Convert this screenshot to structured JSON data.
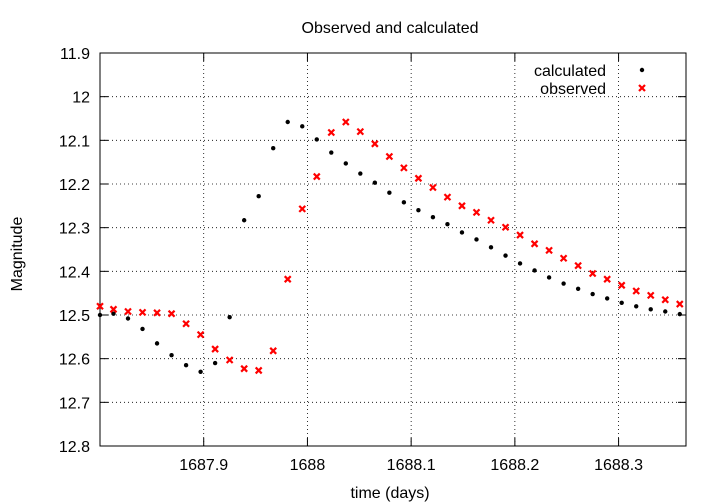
{
  "chart_data": {
    "type": "scatter",
    "title": "Observed and calculated",
    "xlabel": "time (days)",
    "ylabel": "Magnitude",
    "xlim": [
      1687.8,
      1688.365
    ],
    "ylim": [
      12.8,
      11.9
    ],
    "y_inverted": true,
    "grid": true,
    "legend_position": "top-right",
    "x_ticks": [
      {
        "value": 1687.9,
        "label": "1687.9"
      },
      {
        "value": 1688.0,
        "label": "1688"
      },
      {
        "value": 1688.1,
        "label": "1688.1"
      },
      {
        "value": 1688.2,
        "label": "1688.2"
      },
      {
        "value": 1688.3,
        "label": "1688.3"
      }
    ],
    "y_ticks": [
      {
        "value": 11.9,
        "label": "11.9"
      },
      {
        "value": 12.0,
        "label": "12"
      },
      {
        "value": 12.1,
        "label": "12.1"
      },
      {
        "value": 12.2,
        "label": "12.2"
      },
      {
        "value": 12.3,
        "label": "12.3"
      },
      {
        "value": 12.4,
        "label": "12.4"
      },
      {
        "value": 12.5,
        "label": "12.5"
      },
      {
        "value": 12.6,
        "label": "12.6"
      },
      {
        "value": 12.7,
        "label": "12.7"
      },
      {
        "value": 12.8,
        "label": "12.8"
      }
    ],
    "series": [
      {
        "name": "calculated",
        "marker": "dot",
        "color": "#000000",
        "points": [
          [
            1687.8,
            12.5
          ],
          [
            1687.813,
            12.497
          ],
          [
            1687.827,
            12.508
          ],
          [
            1687.841,
            12.532
          ],
          [
            1687.855,
            12.565
          ],
          [
            1687.869,
            12.592
          ],
          [
            1687.883,
            12.615
          ],
          [
            1687.897,
            12.63
          ],
          [
            1687.911,
            12.61
          ],
          [
            1687.925,
            12.505
          ],
          [
            1687.939,
            12.283
          ],
          [
            1687.953,
            12.228
          ],
          [
            1687.967,
            12.118
          ],
          [
            1687.981,
            12.058
          ],
          [
            1687.995,
            12.068
          ],
          [
            1688.009,
            12.098
          ],
          [
            1688.023,
            12.128
          ],
          [
            1688.037,
            12.153
          ],
          [
            1688.051,
            12.176
          ],
          [
            1688.065,
            12.197
          ],
          [
            1688.079,
            12.22
          ],
          [
            1688.093,
            12.242
          ],
          [
            1688.107,
            12.26
          ],
          [
            1688.121,
            12.276
          ],
          [
            1688.135,
            12.292
          ],
          [
            1688.149,
            12.311
          ],
          [
            1688.163,
            12.327
          ],
          [
            1688.177,
            12.345
          ],
          [
            1688.191,
            12.364
          ],
          [
            1688.205,
            12.382
          ],
          [
            1688.219,
            12.398
          ],
          [
            1688.233,
            12.414
          ],
          [
            1688.247,
            12.428
          ],
          [
            1688.261,
            12.44
          ],
          [
            1688.275,
            12.452
          ],
          [
            1688.289,
            12.462
          ],
          [
            1688.303,
            12.472
          ],
          [
            1688.317,
            12.48
          ],
          [
            1688.331,
            12.487
          ],
          [
            1688.345,
            12.492
          ],
          [
            1688.359,
            12.498
          ]
        ]
      },
      {
        "name": "observed",
        "marker": "cross",
        "color": "#ff0000",
        "points": [
          [
            1687.8,
            12.48
          ],
          [
            1687.813,
            12.487
          ],
          [
            1687.827,
            12.492
          ],
          [
            1687.841,
            12.494
          ],
          [
            1687.855,
            12.495
          ],
          [
            1687.869,
            12.497
          ],
          [
            1687.883,
            12.52
          ],
          [
            1687.897,
            12.545
          ],
          [
            1687.911,
            12.578
          ],
          [
            1687.925,
            12.603
          ],
          [
            1687.939,
            12.623
          ],
          [
            1687.953,
            12.627
          ],
          [
            1687.967,
            12.582
          ],
          [
            1687.981,
            12.418
          ],
          [
            1687.995,
            12.257
          ],
          [
            1688.009,
            12.183
          ],
          [
            1688.023,
            12.082
          ],
          [
            1688.037,
            12.058
          ],
          [
            1688.051,
            12.08
          ],
          [
            1688.065,
            12.108
          ],
          [
            1688.079,
            12.137
          ],
          [
            1688.093,
            12.163
          ],
          [
            1688.107,
            12.187
          ],
          [
            1688.121,
            12.208
          ],
          [
            1688.135,
            12.23
          ],
          [
            1688.149,
            12.25
          ],
          [
            1688.163,
            12.265
          ],
          [
            1688.177,
            12.283
          ],
          [
            1688.191,
            12.299
          ],
          [
            1688.205,
            12.317
          ],
          [
            1688.219,
            12.337
          ],
          [
            1688.233,
            12.352
          ],
          [
            1688.247,
            12.37
          ],
          [
            1688.261,
            12.387
          ],
          [
            1688.275,
            12.405
          ],
          [
            1688.289,
            12.418
          ],
          [
            1688.303,
            12.432
          ],
          [
            1688.317,
            12.445
          ],
          [
            1688.331,
            12.455
          ],
          [
            1688.345,
            12.465
          ],
          [
            1688.359,
            12.475
          ]
        ]
      }
    ]
  }
}
